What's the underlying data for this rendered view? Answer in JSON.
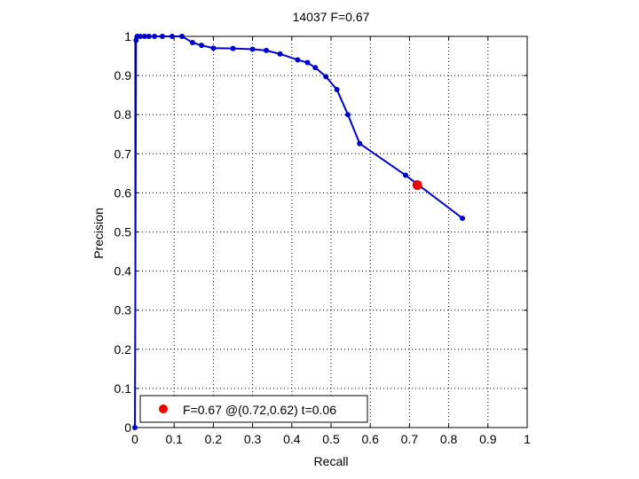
{
  "chart_data": {
    "type": "line",
    "title": "14037 F=0.67",
    "xlabel": "Recall",
    "ylabel": "Precision",
    "xlim": [
      0,
      1
    ],
    "ylim": [
      0,
      1
    ],
    "xticks": [
      0,
      0.1,
      0.2,
      0.3,
      0.4,
      0.5,
      0.6,
      0.7,
      0.8,
      0.9,
      1
    ],
    "yticks": [
      0,
      0.1,
      0.2,
      0.3,
      0.4,
      0.5,
      0.6,
      0.7,
      0.8,
      0.9,
      1
    ],
    "xtick_labels": [
      "0",
      "0.1",
      "0.2",
      "0.3",
      "0.4",
      "0.5",
      "0.6",
      "0.7",
      "0.8",
      "0.9",
      "1"
    ],
    "ytick_labels": [
      "0",
      "0.1",
      "0.2",
      "0.3",
      "0.4",
      "0.5",
      "0.6",
      "0.7",
      "0.8",
      "0.9",
      "1"
    ],
    "grid": true,
    "legend_position": "bottom-left",
    "series": [
      {
        "color": "#0000cc",
        "marker": "dot",
        "points": [
          [
            0,
            0
          ],
          [
            0.003,
            0.99
          ],
          [
            0.006,
            1.0
          ],
          [
            0.014,
            1.0
          ],
          [
            0.025,
            1.0
          ],
          [
            0.036,
            1.0
          ],
          [
            0.05,
            1.0
          ],
          [
            0.07,
            1.0
          ],
          [
            0.095,
            1.0
          ],
          [
            0.12,
            1.0
          ],
          [
            0.147,
            0.984
          ],
          [
            0.17,
            0.977
          ],
          [
            0.2,
            0.97
          ],
          [
            0.25,
            0.969
          ],
          [
            0.3,
            0.967
          ],
          [
            0.335,
            0.964
          ],
          [
            0.37,
            0.955
          ],
          [
            0.415,
            0.94
          ],
          [
            0.44,
            0.933
          ],
          [
            0.46,
            0.92
          ],
          [
            0.487,
            0.897
          ],
          [
            0.515,
            0.864
          ],
          [
            0.543,
            0.8
          ],
          [
            0.573,
            0.726
          ],
          [
            0.69,
            0.645
          ],
          [
            0.835,
            0.535
          ]
        ]
      }
    ],
    "highlight_point": {
      "x": 0.72,
      "y": 0.62,
      "color": "#ee0000",
      "label": "F=0.67 @(0.72,0.62) t=0.06"
    }
  }
}
